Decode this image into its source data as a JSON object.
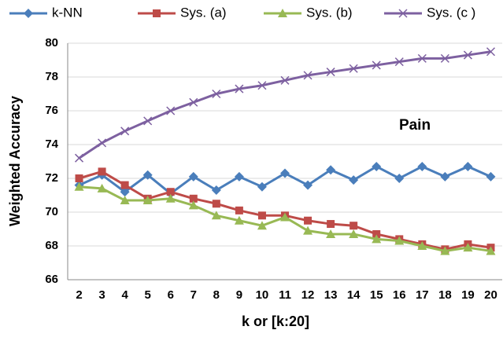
{
  "chart_data": {
    "type": "line",
    "y_label": "Weighted  Accuracy",
    "x_label": "k or [k:20]",
    "annotation": "Pain",
    "categories": [
      "2",
      "3",
      "4",
      "5",
      "6",
      "7",
      "8",
      "9",
      "10",
      "11",
      "12",
      "13",
      "14",
      "15",
      "16",
      "17",
      "18",
      "19",
      "20"
    ],
    "series": [
      {
        "name": "k-NN",
        "color": "#4a7ebb",
        "marker": "diamond",
        "values": [
          71.6,
          72.2,
          71.2,
          72.2,
          71.1,
          72.1,
          71.3,
          72.1,
          71.5,
          72.3,
          71.6,
          72.5,
          71.9,
          72.7,
          72.0,
          72.7,
          72.1,
          72.7,
          72.1
        ]
      },
      {
        "name": "Sys. (a)",
        "color": "#be4b48",
        "marker": "square",
        "values": [
          72.0,
          72.4,
          71.6,
          70.8,
          71.2,
          70.8,
          70.5,
          70.1,
          69.8,
          69.8,
          69.5,
          69.3,
          69.2,
          68.7,
          68.4,
          68.1,
          67.8,
          68.1,
          67.9
        ]
      },
      {
        "name": "Sys. (b)",
        "color": "#98b954",
        "marker": "triangle",
        "values": [
          71.5,
          71.4,
          70.7,
          70.7,
          70.8,
          70.4,
          69.8,
          69.5,
          69.2,
          69.7,
          68.9,
          68.7,
          68.7,
          68.4,
          68.3,
          68.0,
          67.7,
          67.9,
          67.7
        ]
      },
      {
        "name": "Sys. (c )",
        "color": "#7d60a0",
        "marker": "x",
        "values": [
          73.2,
          74.1,
          74.8,
          75.4,
          76.0,
          76.5,
          77.0,
          77.3,
          77.5,
          77.8,
          78.1,
          78.3,
          78.5,
          78.7,
          78.9,
          79.1,
          79.1,
          79.3,
          79.5
        ]
      }
    ],
    "ylim": [
      66,
      80
    ],
    "yticks": [
      66,
      68,
      70,
      72,
      74,
      76,
      78,
      80
    ],
    "grid": true,
    "legend": "top"
  }
}
